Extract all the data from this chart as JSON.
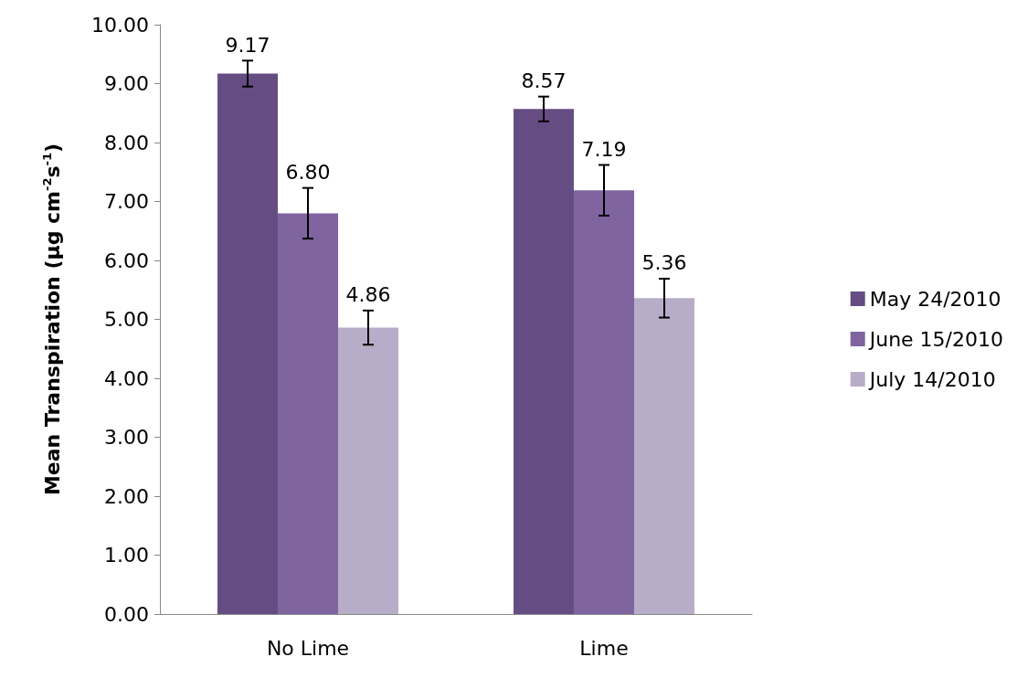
{
  "chart_data": {
    "type": "bar",
    "ylabel": "Mean Transpiration (µg cm$^{-2}$s$^{-1}$)",
    "categories": [
      "No Lime",
      "Lime"
    ],
    "series": [
      {
        "name": "May 24/2010",
        "color": "#654d84",
        "values": [
          9.17,
          8.57
        ],
        "errors": [
          0.22,
          0.21
        ],
        "value_labels": [
          "9.17",
          "8.57"
        ]
      },
      {
        "name": "June 15/2010",
        "color": "#7f64a0",
        "values": [
          6.8,
          7.19
        ],
        "errors": [
          0.43,
          0.43
        ],
        "value_labels": [
          "6.80",
          "7.19"
        ]
      },
      {
        "name": "July 14/2010",
        "color": "#b8adc9",
        "values": [
          4.86,
          5.36
        ],
        "errors": [
          0.29,
          0.33
        ],
        "value_labels": [
          "4.86",
          "5.36"
        ]
      }
    ],
    "ylim": [
      0,
      10
    ],
    "yticks": [
      {
        "value": 0,
        "label": "0.00"
      },
      {
        "value": 1,
        "label": "1.00"
      },
      {
        "value": 2,
        "label": "2.00"
      },
      {
        "value": 3,
        "label": "3.00"
      },
      {
        "value": 4,
        "label": "4.00"
      },
      {
        "value": 5,
        "label": "5.00"
      },
      {
        "value": 6,
        "label": "6.00"
      },
      {
        "value": 7,
        "label": "7.00"
      },
      {
        "value": 8,
        "label": "8.00"
      },
      {
        "value": 9,
        "label": "9.00"
      },
      {
        "value": 10,
        "label": "10.00"
      }
    ],
    "grid": false,
    "legend": "right"
  }
}
